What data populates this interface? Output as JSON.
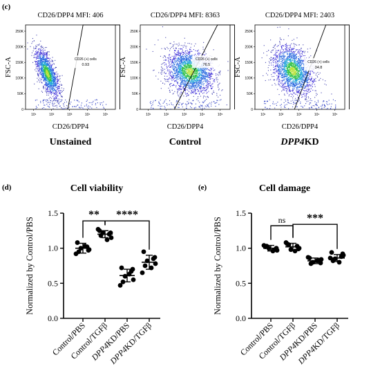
{
  "panel_labels": {
    "c": "(c)",
    "d": "(d)",
    "e": "(e)"
  },
  "chart_data": [
    {
      "type": "scatter",
      "panel": "c",
      "subtype": "flow-cytometry-density",
      "title": "CD26/DPP4 MFI: 406",
      "caption": "Unstained",
      "xlabel": "CD26/DPP4",
      "ylabel": "FSC-A",
      "gate_label": "CD26 (+) cells",
      "gate_value": "0.93",
      "y_ticks": [
        "0",
        "50K",
        "100K",
        "150K",
        "200K",
        "250K"
      ],
      "x_ticks": [
        "10¹",
        "10²",
        "10³",
        "10⁴",
        "10⁵"
      ]
    },
    {
      "type": "scatter",
      "panel": "c",
      "subtype": "flow-cytometry-density",
      "title": "CD26/DPP4 MFI: 8363",
      "caption": "Control",
      "xlabel": "CD26/DPP4",
      "ylabel": "FSC-A",
      "gate_label": "CD26 (+) cells",
      "gate_value": "76.5",
      "y_ticks": [
        "0",
        "50K",
        "100K",
        "150K",
        "200K",
        "250K"
      ],
      "x_ticks": [
        "10¹",
        "10²",
        "10³",
        "10⁴",
        "10⁵"
      ]
    },
    {
      "type": "scatter",
      "panel": "c",
      "subtype": "flow-cytometry-density",
      "title": "CD26/DPP4 MFI: 2403",
      "caption_italic": "DPP4",
      "caption_rest": "KD",
      "xlabel": "CD26/DPP4",
      "ylabel": "FSC-A",
      "gate_label": "CD26 (+) cells",
      "gate_value": "34.8",
      "y_ticks": [
        "0",
        "50K",
        "100K",
        "150K",
        "200K",
        "250K"
      ],
      "x_ticks": [
        "10¹",
        "10²",
        "10³",
        "10⁴",
        "10⁵"
      ]
    },
    {
      "type": "scatter",
      "panel": "d",
      "title": "Cell viability",
      "ylabel": "Normalized by Control/PBS",
      "ylim": [
        0,
        1.5
      ],
      "y_ticks": [
        "0.0",
        "0.5",
        "1.0",
        "1.5"
      ],
      "categories": [
        {
          "italic": "",
          "rest": "Control/PBS"
        },
        {
          "italic": "",
          "rest": "Control/TGFβ"
        },
        {
          "italic": "DPP4",
          "rest": "KD/PBS"
        },
        {
          "italic": "DPP4",
          "rest": "KD/TGFβ"
        }
      ],
      "series": [
        {
          "values": [
            1.08,
            1.02,
            1.0,
            0.98,
            0.95,
            1.03,
            0.92,
            0.97
          ]
        },
        {
          "values": [
            1.25,
            1.2,
            1.22,
            1.15,
            1.18,
            1.12,
            1.27,
            1.22
          ]
        },
        {
          "values": [
            0.72,
            0.67,
            0.6,
            0.55,
            0.52,
            0.63,
            0.47,
            0.7
          ]
        },
        {
          "values": [
            0.95,
            0.85,
            0.82,
            0.78,
            0.75,
            0.72,
            0.65,
            0.87
          ]
        }
      ],
      "means": [
        1.0,
        1.2,
        0.61,
        0.8
      ],
      "sd": [
        0.07,
        0.05,
        0.09,
        0.1
      ],
      "significance": [
        {
          "from": 0,
          "to": 1,
          "label": "**"
        },
        {
          "from": 1,
          "to": 3,
          "label": "****"
        }
      ]
    },
    {
      "type": "scatter",
      "panel": "e",
      "title": "Cell damage",
      "ylabel": "Normalized by Control/PBS",
      "ylim": [
        0,
        1.5
      ],
      "y_ticks": [
        "0.0",
        "0.5",
        "1.0",
        "1.5"
      ],
      "categories": [
        {
          "italic": "",
          "rest": "Control/PBS"
        },
        {
          "italic": "",
          "rest": "Control/TGFβ"
        },
        {
          "italic": "DPP4",
          "rest": "KD/PBS"
        },
        {
          "italic": "DPP4",
          "rest": "KD/TGFβ"
        }
      ],
      "series": [
        {
          "values": [
            1.02,
            0.98,
            1.0,
            0.97,
            1.03,
            0.96,
            1.04,
            1.0
          ]
        },
        {
          "values": [
            1.06,
            1.03,
            0.98,
            1.0,
            1.05,
            0.96,
            1.08,
            0.99
          ]
        },
        {
          "values": [
            0.86,
            0.83,
            0.8,
            0.84,
            0.78,
            0.82,
            0.87,
            0.79
          ]
        },
        {
          "values": [
            0.94,
            0.88,
            0.85,
            0.9,
            0.82,
            0.8,
            0.86,
            0.92
          ]
        }
      ],
      "means": [
        1.0,
        1.02,
        0.82,
        0.86
      ],
      "sd": [
        0.04,
        0.05,
        0.04,
        0.05
      ],
      "significance": [
        {
          "from": 0,
          "to": 1,
          "label": "ns"
        },
        {
          "from": 1,
          "to": 3,
          "label": "***"
        }
      ]
    }
  ]
}
